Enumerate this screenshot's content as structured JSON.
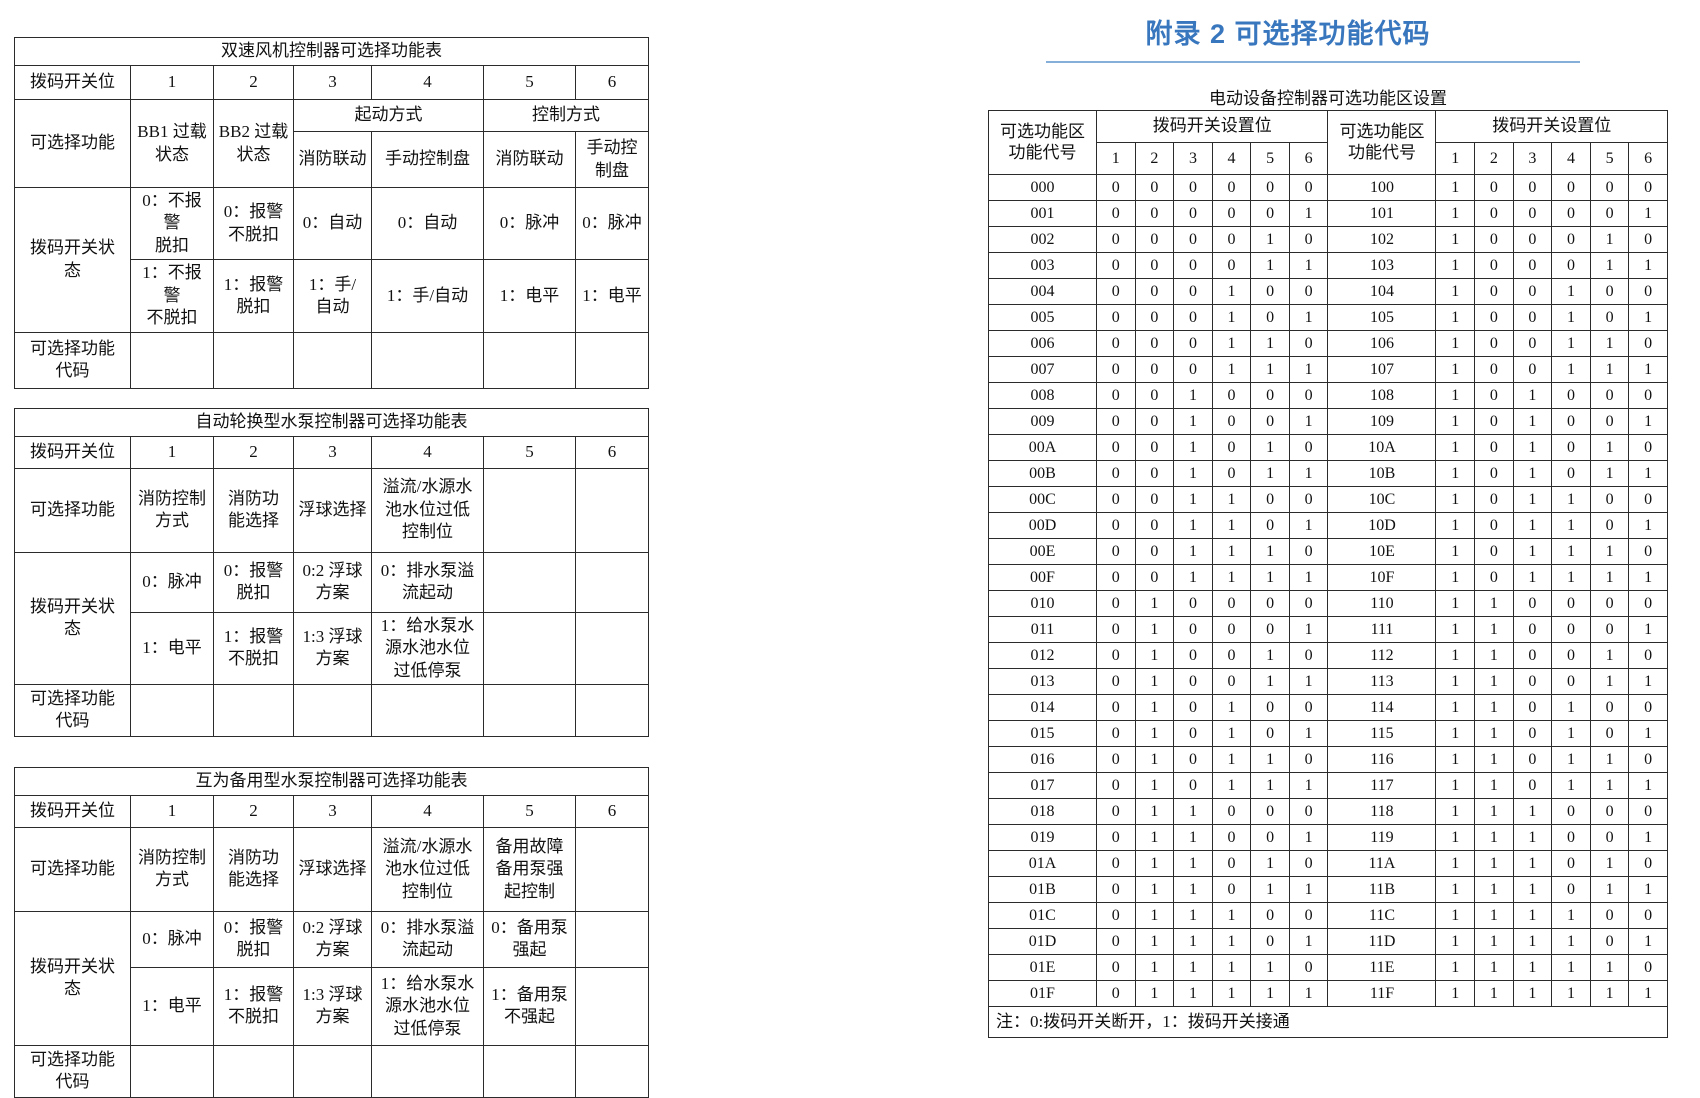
{
  "page": {
    "background": "#ffffff",
    "accent_blue": "#3876be",
    "rule_blue": "#85aed9"
  },
  "common": {
    "pos_label": "拨码开关位",
    "func_label": "可选择功能",
    "state_label": "拨码开关状\n态",
    "code_label": "可选择功能\n代码",
    "positions": [
      "1",
      "2",
      "3",
      "4",
      "5",
      "6"
    ]
  },
  "fan_table": {
    "title": "双速风机控制器可选择功能表",
    "func_bb1": "BB1 过载\n状态",
    "func_bb2": "BB2 过载\n状态",
    "group_start": "起动方式",
    "group_control": "控制方式",
    "sub_start_1": "消防联动",
    "sub_start_2": "手动控制盘",
    "sub_ctrl_1": "消防联动",
    "sub_ctrl_2": "手动控\n制盘",
    "state0": [
      "0：不报警\n脱扣",
      "0：报警\n不脱扣",
      "0：自动",
      "0：自动",
      "0：脉冲",
      "0：脉冲"
    ],
    "state1": [
      "1：不报警\n不脱扣",
      "1：报警\n脱扣",
      "1：手/\n自动",
      "1：手/自动",
      "1：电平",
      "1：电平"
    ]
  },
  "pump_auto_table": {
    "title": "自动轮换型水泵控制器可选择功能表",
    "funcs": [
      "消防控制\n方式",
      "消防功\n能选择",
      "浮球选择",
      "溢流/水源水\n池水位过低\n控制位",
      "",
      ""
    ],
    "state0": [
      "0：脉冲",
      "0：报警\n脱扣",
      "0:2 浮球\n方案",
      "0：排水泵溢\n流起动",
      "",
      ""
    ],
    "state1": [
      "1：电平",
      "1：报警\n不脱扣",
      "1:3 浮球\n方案",
      "1：给水泵水\n源水池水位\n过低停泵",
      "",
      ""
    ]
  },
  "pump_backup_table": {
    "title": "互为备用型水泵控制器可选择功能表",
    "funcs": [
      "消防控制\n方式",
      "消防功\n能选择",
      "浮球选择",
      "溢流/水源水\n池水位过低\n控制位",
      "备用故障\n备用泵强\n起控制",
      ""
    ],
    "state0": [
      "0：脉冲",
      "0：报警\n脱扣",
      "0:2 浮球\n方案",
      "0：排水泵溢\n流起动",
      "0：备用泵\n强起",
      ""
    ],
    "state1": [
      "1：电平",
      "1：报警\n不脱扣",
      "1:3 浮球\n方案",
      "1：给水泵水\n源水池水位\n过低停泵",
      "1：备用泵\n不强起",
      ""
    ]
  },
  "appendix": {
    "title": "附录 2 可选择功能代码",
    "table_caption": "电动设备控制器可选功能区设置",
    "code_col_label": "可选功能区\n功能代号",
    "switch_col_label": "拨码开关设置位",
    "positions": [
      "1",
      "2",
      "3",
      "4",
      "5",
      "6"
    ],
    "note": "注：0:拨码开关断开，1：拨码开关接通",
    "rows": [
      [
        "000",
        "000000",
        "100",
        "100000"
      ],
      [
        "001",
        "000001",
        "101",
        "100001"
      ],
      [
        "002",
        "000010",
        "102",
        "100010"
      ],
      [
        "003",
        "000011",
        "103",
        "100011"
      ],
      [
        "004",
        "000100",
        "104",
        "100100"
      ],
      [
        "005",
        "000101",
        "105",
        "100101"
      ],
      [
        "006",
        "000110",
        "106",
        "100110"
      ],
      [
        "007",
        "000111",
        "107",
        "100111"
      ],
      [
        "008",
        "001000",
        "108",
        "101000"
      ],
      [
        "009",
        "001001",
        "109",
        "101001"
      ],
      [
        "00A",
        "001010",
        "10A",
        "101010"
      ],
      [
        "00B",
        "001011",
        "10B",
        "101011"
      ],
      [
        "00C",
        "001100",
        "10C",
        "101100"
      ],
      [
        "00D",
        "001101",
        "10D",
        "101101"
      ],
      [
        "00E",
        "001110",
        "10E",
        "101110"
      ],
      [
        "00F",
        "001111",
        "10F",
        "101111"
      ],
      [
        "010",
        "010000",
        "110",
        "110000"
      ],
      [
        "011",
        "010001",
        "111",
        "110001"
      ],
      [
        "012",
        "010010",
        "112",
        "110010"
      ],
      [
        "013",
        "010011",
        "113",
        "110011"
      ],
      [
        "014",
        "010100",
        "114",
        "110100"
      ],
      [
        "015",
        "010101",
        "115",
        "110101"
      ],
      [
        "016",
        "010110",
        "116",
        "110110"
      ],
      [
        "017",
        "010111",
        "117",
        "110111"
      ],
      [
        "018",
        "011000",
        "118",
        "111000"
      ],
      [
        "019",
        "011001",
        "119",
        "111001"
      ],
      [
        "01A",
        "011010",
        "11A",
        "111010"
      ],
      [
        "01B",
        "011011",
        "11B",
        "111011"
      ],
      [
        "01C",
        "011100",
        "11C",
        "111100"
      ],
      [
        "01D",
        "011101",
        "11D",
        "111101"
      ],
      [
        "01E",
        "011110",
        "11E",
        "111110"
      ],
      [
        "01F",
        "011111",
        "11F",
        "111111"
      ]
    ]
  }
}
